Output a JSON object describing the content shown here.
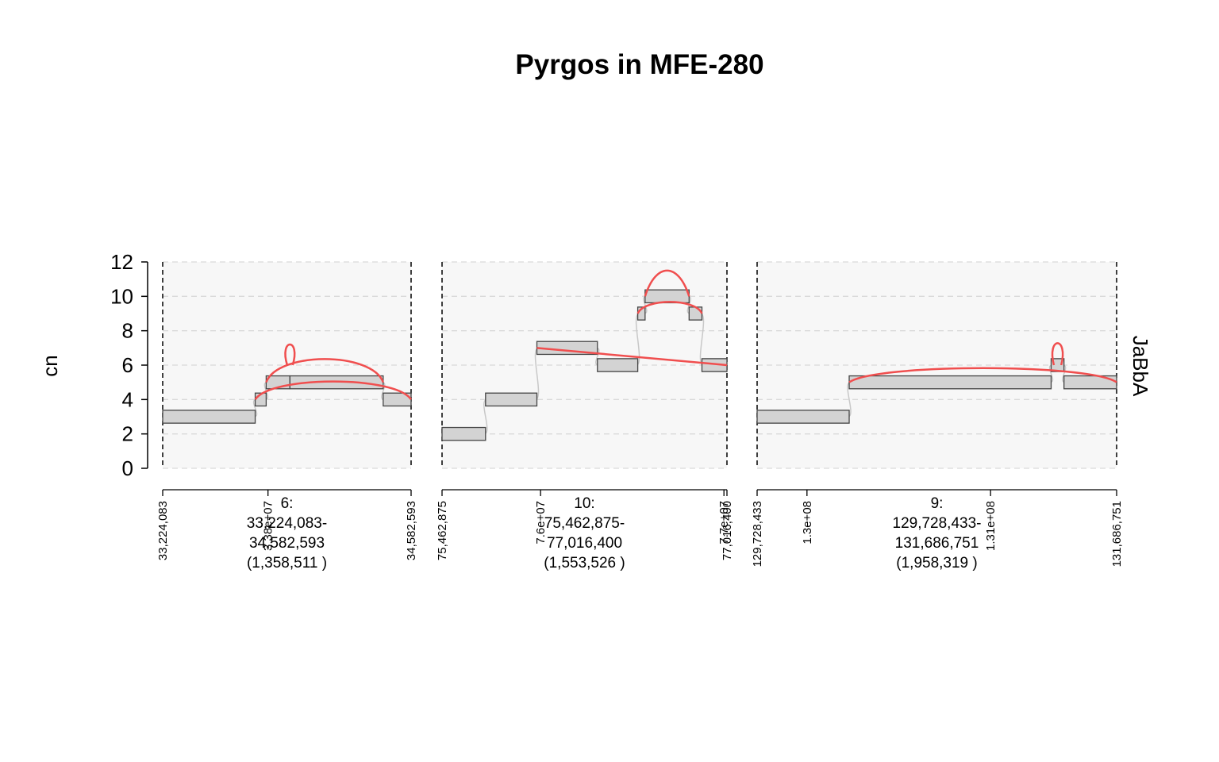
{
  "chart_data": {
    "type": "genome-graph",
    "title": "Pyrgos in MFE-280",
    "ylabel": "cn",
    "track_label": "JaBbA",
    "ylim": [
      0,
      12
    ],
    "yticks": [
      0,
      2,
      4,
      6,
      8,
      10,
      12
    ],
    "grid": true,
    "colors": {
      "segment_fill": "#d3d3d3",
      "segment_stroke": "#444444",
      "alt_edge": "#f04e4e",
      "ref_edge": "#c8c8c8",
      "panel_bg": "#f7f7f7",
      "grid": "#d9d9d9"
    },
    "windows": [
      {
        "chrom": "6",
        "start": 33224083,
        "end": 34582593,
        "label_lines": [
          "6:",
          "33,224,083-",
          "34,582,593",
          "(1,358,511 )"
        ],
        "ticks": [
          {
            "pos": 33224083,
            "label": "33,224,083"
          },
          {
            "pos": 33800000,
            "label": "3.38e+07"
          },
          {
            "pos": 34582593,
            "label": "34,582,593"
          }
        ],
        "segments": [
          {
            "start": 33224083,
            "end": 33730000,
            "cn": 3
          },
          {
            "start": 33730000,
            "end": 33790000,
            "cn": 4
          },
          {
            "start": 33790000,
            "end": 33920000,
            "cn": 5
          },
          {
            "start": 33920000,
            "end": 34430000,
            "cn": 5
          },
          {
            "start": 34430000,
            "end": 34582593,
            "cn": 4
          }
        ],
        "alt_edges": [
          {
            "from": 33790000,
            "to": 34430000,
            "cn_from": 5,
            "cn_to": 5,
            "height": 1.8
          },
          {
            "from": 33730000,
            "to": 34582593,
            "cn_from": 4,
            "cn_to": 4,
            "height": 1.4
          },
          {
            "from": 33905000,
            "to": 33935000,
            "cn_from": 6,
            "cn_to": 6,
            "height": 0.8
          }
        ]
      },
      {
        "chrom": "10",
        "start": 75462875,
        "end": 77016400,
        "label_lines": [
          "10:",
          "75,462,875-",
          "77,016,400",
          "(1,553,526 )"
        ],
        "ticks": [
          {
            "pos": 75462875,
            "label": "75,462,875"
          },
          {
            "pos": 76000000,
            "label": "7.6e+07"
          },
          {
            "pos": 77000000,
            "label": "7.7e+07"
          },
          {
            "pos": 77016400,
            "label": "77,016,400"
          }
        ],
        "segments": [
          {
            "start": 75462875,
            "end": 75700000,
            "cn": 2
          },
          {
            "start": 75700000,
            "end": 75980000,
            "cn": 4
          },
          {
            "start": 75980000,
            "end": 76310000,
            "cn": 7
          },
          {
            "start": 76310000,
            "end": 76530000,
            "cn": 6
          },
          {
            "start": 76530000,
            "end": 76570000,
            "cn": 9
          },
          {
            "start": 76570000,
            "end": 76810000,
            "cn": 10
          },
          {
            "start": 76810000,
            "end": 76880000,
            "cn": 9
          },
          {
            "start": 76880000,
            "end": 77016400,
            "cn": 6
          }
        ],
        "alt_edges": [
          {
            "from": 76570000,
            "to": 76810000,
            "cn_from": 10,
            "cn_to": 10,
            "height": 1.2
          },
          {
            "from": 76530000,
            "to": 76880000,
            "cn_from": 9,
            "cn_to": 9,
            "height": 0.9
          },
          {
            "from": 75980000,
            "to": 77016400,
            "cn_from": 7,
            "cn_to": 6,
            "height": 0
          }
        ]
      },
      {
        "chrom": "9",
        "start": 129728433,
        "end": 131686751,
        "label_lines": [
          "9:",
          "129,728,433-",
          "131,686,751",
          "(1,958,319 )"
        ],
        "ticks": [
          {
            "pos": 129728433,
            "label": "129,728,433"
          },
          {
            "pos": 130000000,
            "label": "1.3e+08"
          },
          {
            "pos": 131000000,
            "label": "1.31e+08"
          },
          {
            "pos": 131686751,
            "label": "131,686,751"
          }
        ],
        "segments": [
          {
            "start": 129728433,
            "end": 130230000,
            "cn": 3
          },
          {
            "start": 130230000,
            "end": 131330000,
            "cn": 5
          },
          {
            "start": 131330000,
            "end": 131400000,
            "cn": 6
          },
          {
            "start": 131400000,
            "end": 131686751,
            "cn": 5
          }
        ],
        "alt_edges": [
          {
            "from": 130230000,
            "to": 131686751,
            "cn_from": 5,
            "cn_to": 5,
            "height": 1.1
          },
          {
            "from": 131345000,
            "to": 131385000,
            "cn_from": 6,
            "cn_to": 6,
            "height": 0.9
          }
        ]
      }
    ]
  }
}
